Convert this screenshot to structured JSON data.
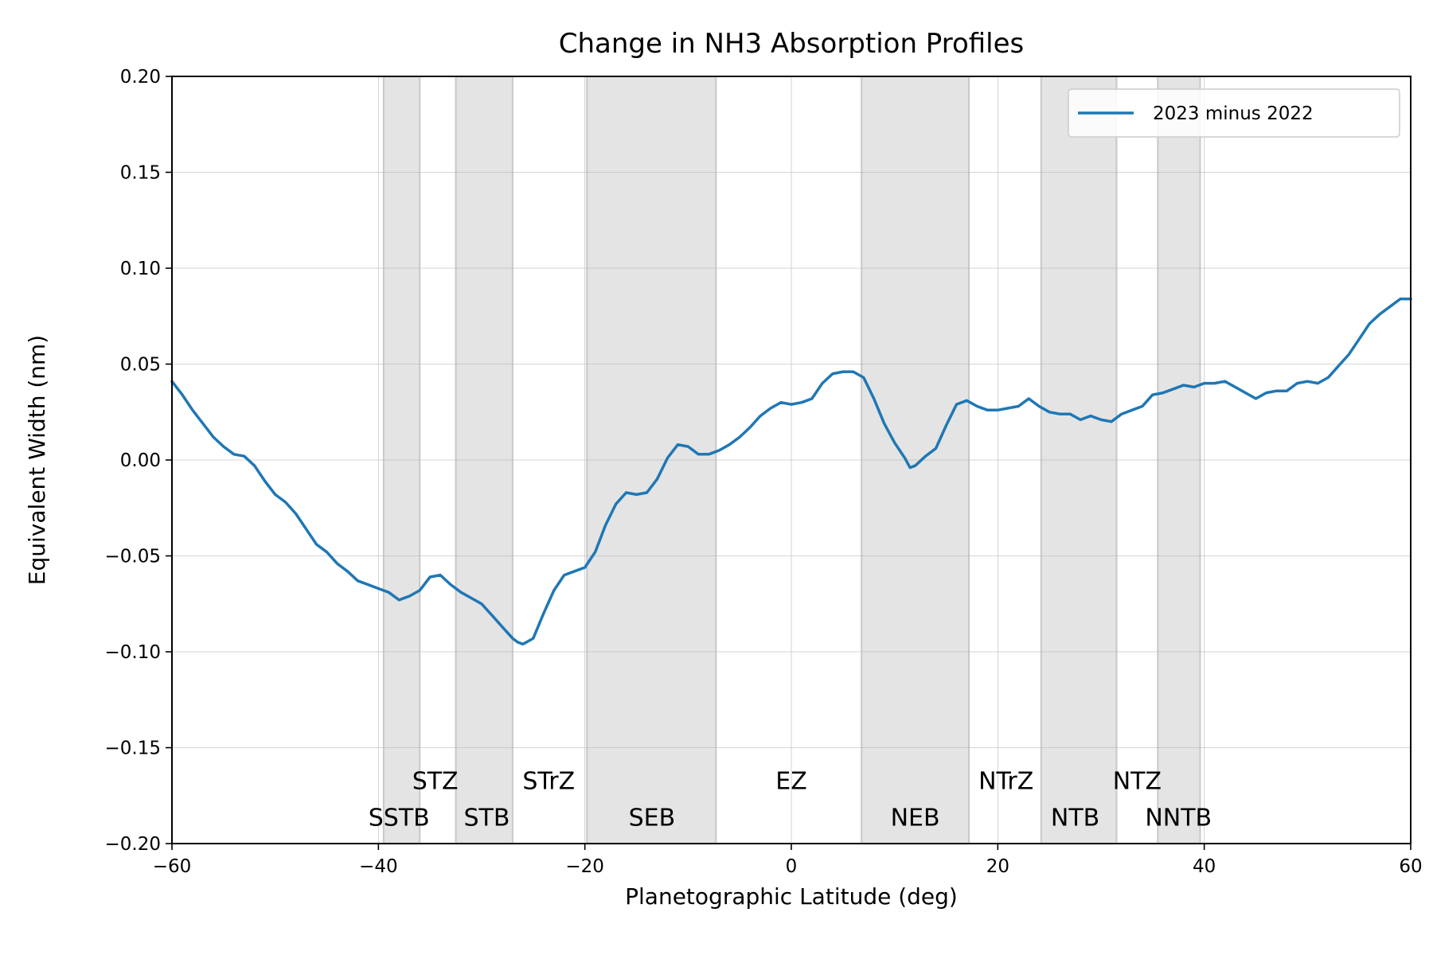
{
  "chart_data": {
    "type": "line",
    "title": "Change in NH3 Absorption Profiles",
    "xlabel": "Planetographic Latitude (deg)",
    "ylabel": "Equivalent Width (nm)",
    "xlim": [
      -60,
      60
    ],
    "ylim": [
      -0.2,
      0.2
    ],
    "xticks": [
      -60,
      -40,
      -20,
      0,
      20,
      40,
      60
    ],
    "xtick_labels": [
      "−60",
      "−40",
      "−20",
      "0",
      "20",
      "40",
      "60"
    ],
    "yticks": [
      -0.2,
      -0.15,
      -0.1,
      -0.05,
      0.0,
      0.05,
      0.1,
      0.15,
      0.2
    ],
    "ytick_labels": [
      "−0.20",
      "−0.15",
      "−0.10",
      "−0.05",
      "0.00",
      "0.05",
      "0.10",
      "0.15",
      "0.20"
    ],
    "grid": true,
    "legend_position": "top-right",
    "colors": {
      "series": "#1f77b4",
      "band": "#e4e4e4",
      "band_edge": "#c8c8c8"
    },
    "series": [
      {
        "name": "2023 minus 2022",
        "x": [
          -60,
          -59,
          -58,
          -57,
          -56,
          -55,
          -54,
          -53,
          -52,
          -51,
          -50,
          -49,
          -48,
          -47,
          -46,
          -45,
          -44,
          -43,
          -42,
          -41,
          -40,
          -39,
          -38,
          -37,
          -36,
          -35,
          -34,
          -33,
          -32,
          -31,
          -30,
          -29,
          -28,
          -27,
          -26.5,
          -26,
          -25,
          -24,
          -23,
          -22,
          -21,
          -20,
          -19,
          -18,
          -17,
          -16,
          -15,
          -14,
          -13,
          -12,
          -11,
          -10,
          -9,
          -8,
          -7,
          -6,
          -5,
          -4,
          -3,
          -2,
          -1,
          0,
          1,
          2,
          3,
          4,
          5,
          6,
          7,
          8,
          9,
          10,
          11,
          11.5,
          12,
          13,
          14,
          15,
          16,
          17,
          18,
          19,
          20,
          21,
          22,
          23,
          24,
          25,
          26,
          27,
          28,
          29,
          30,
          31,
          32,
          33,
          34,
          35,
          36,
          37,
          38,
          39,
          40,
          41,
          42,
          43,
          44,
          45,
          46,
          47,
          48,
          49,
          50,
          51,
          52,
          53,
          54,
          55,
          56,
          57,
          58,
          59,
          60
        ],
        "y": [
          0.041,
          0.034,
          0.026,
          0.019,
          0.012,
          0.007,
          0.003,
          0.002,
          -0.003,
          -0.011,
          -0.018,
          -0.022,
          -0.028,
          -0.036,
          -0.044,
          -0.048,
          -0.054,
          -0.058,
          -0.063,
          -0.065,
          -0.067,
          -0.069,
          -0.073,
          -0.071,
          -0.068,
          -0.061,
          -0.06,
          -0.065,
          -0.069,
          -0.072,
          -0.075,
          -0.081,
          -0.087,
          -0.093,
          -0.095,
          -0.096,
          -0.093,
          -0.08,
          -0.068,
          -0.06,
          -0.058,
          -0.056,
          -0.048,
          -0.034,
          -0.023,
          -0.017,
          -0.018,
          -0.017,
          -0.01,
          0.001,
          0.008,
          0.007,
          0.003,
          0.003,
          0.005,
          0.008,
          0.012,
          0.017,
          0.023,
          0.027,
          0.03,
          0.029,
          0.03,
          0.032,
          0.04,
          0.045,
          0.046,
          0.046,
          0.043,
          0.032,
          0.019,
          0.009,
          0.001,
          -0.004,
          -0.003,
          0.002,
          0.006,
          0.018,
          0.029,
          0.031,
          0.028,
          0.026,
          0.026,
          0.027,
          0.028,
          0.032,
          0.028,
          0.025,
          0.024,
          0.024,
          0.021,
          0.023,
          0.021,
          0.02,
          0.024,
          0.026,
          0.028,
          0.034,
          0.035,
          0.037,
          0.039,
          0.038,
          0.04,
          0.04,
          0.041,
          0.038,
          0.035,
          0.032,
          0.035,
          0.036,
          0.036,
          0.04,
          0.041,
          0.04,
          0.043,
          0.049,
          0.055,
          0.063,
          0.071,
          0.076,
          0.08,
          0.084,
          0.084
        ]
      }
    ],
    "bands": [
      {
        "name": "SSTB",
        "x0": -39.5,
        "x1": -36.0
      },
      {
        "name": "STB",
        "x0": -32.5,
        "x1": -27.0
      },
      {
        "name": "SEB",
        "x0": -19.8,
        "x1": -7.3
      },
      {
        "name": "NEB",
        "x0": 6.8,
        "x1": 17.2
      },
      {
        "name": "NTB",
        "x0": 24.2,
        "x1": 31.5
      },
      {
        "name": "NNTB",
        "x0": 35.5,
        "x1": 39.6
      }
    ],
    "labels_upper": [
      {
        "text": "STZ",
        "x": -34.5,
        "y": -0.167
      },
      {
        "text": "STrZ",
        "x": -23.5,
        "y": -0.167
      },
      {
        "text": "EZ",
        "x": 0.0,
        "y": -0.167
      },
      {
        "text": "NTrZ",
        "x": 20.8,
        "y": -0.167
      },
      {
        "text": "NTZ",
        "x": 33.5,
        "y": -0.167
      }
    ],
    "labels_lower": [
      {
        "text": "SSTB",
        "x": -38.0,
        "y": -0.186
      },
      {
        "text": "STB",
        "x": -29.5,
        "y": -0.186
      },
      {
        "text": "SEB",
        "x": -13.5,
        "y": -0.186
      },
      {
        "text": "NEB",
        "x": 12.0,
        "y": -0.186
      },
      {
        "text": "NTB",
        "x": 27.5,
        "y": -0.186
      },
      {
        "text": "NNTB",
        "x": 37.5,
        "y": -0.186
      }
    ]
  }
}
